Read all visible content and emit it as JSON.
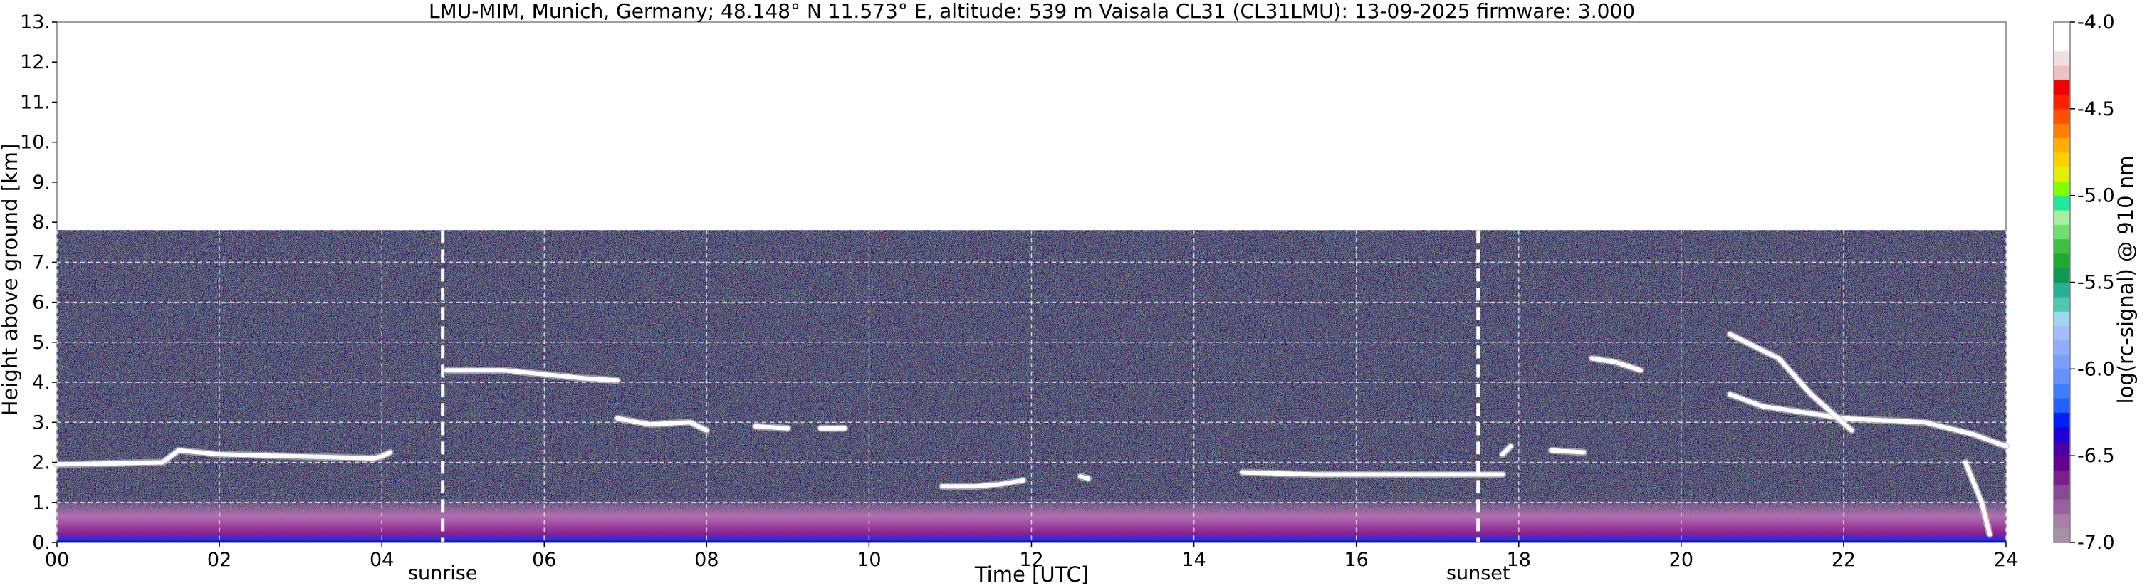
{
  "chart_data": {
    "type": "heatmap",
    "title": "LMU-MIM, Munich, Germany; 48.148° N 11.573° E, altitude: 539 m    Vaisala CL31 (CL31LMU): 13-09-2025    firmware: 3.000",
    "xlabel": "Time [UTC]",
    "ylabel": "Height above ground [km]",
    "xlim": [
      0,
      24
    ],
    "ylim": [
      0,
      13
    ],
    "x_ticks": [
      "00",
      "02",
      "04",
      "06",
      "08",
      "10",
      "12",
      "14",
      "16",
      "18",
      "20",
      "22",
      "24"
    ],
    "y_ticks": [
      "0.",
      "1.",
      "2.",
      "3.",
      "4.",
      "5.",
      "6.",
      "7.",
      "8.",
      "9.",
      "10.",
      "11.",
      "12.",
      "13."
    ],
    "grid": true,
    "data_top_km": 7.8,
    "markers": [
      {
        "label": "sunrise",
        "time_utc": 4.75
      },
      {
        "label": "sunset",
        "time_utc": 17.5
      }
    ],
    "colorbar": {
      "label": "log(rc-signal) @ 910 nm",
      "range": [
        -7.0,
        -4.0
      ],
      "ticks": [
        "-4.0",
        "-4.5",
        "-5.0",
        "-5.5",
        "-6.0",
        "-6.5",
        "-7.0"
      ],
      "colors": [
        "#a791a7",
        "#a77fa7",
        "#9a5f9f",
        "#8a4795",
        "#7a208a",
        "#68008e",
        "#4a00a8",
        "#1e00d8",
        "#0020f8",
        "#1e62ff",
        "#3f7dff",
        "#6392ff",
        "#7a9eff",
        "#90aeff",
        "#a6bcff",
        "#9fd6f0",
        "#50c8b0",
        "#25b098",
        "#109850",
        "#20a830",
        "#40c040",
        "#70e070",
        "#a8f0a0",
        "#20e8a0",
        "#80ff00",
        "#e0f000",
        "#ffd000",
        "#ffb000",
        "#ff8000",
        "#ff5000",
        "#ff2000",
        "#f00000",
        "#f0c0c0",
        "#f0e0e0",
        "#ffffff",
        "#ffffff"
      ]
    },
    "layers": [
      {
        "name": "cloud",
        "points": [
          [
            0,
            1.95
          ],
          [
            1.3,
            2.0
          ],
          [
            1.5,
            2.3
          ],
          [
            2.0,
            2.2
          ],
          [
            3.0,
            2.15
          ],
          [
            3.9,
            2.1
          ],
          [
            4.0,
            2.15
          ],
          [
            4.1,
            2.25
          ]
        ]
      },
      {
        "name": "cloud",
        "points": [
          [
            4.8,
            4.3
          ],
          [
            5.5,
            4.3
          ],
          [
            6.0,
            4.2
          ],
          [
            6.5,
            4.1
          ],
          [
            6.9,
            4.05
          ]
        ]
      },
      {
        "name": "cloud",
        "points": [
          [
            6.9,
            3.1
          ],
          [
            7.3,
            2.95
          ],
          [
            7.8,
            3.0
          ],
          [
            8.0,
            2.8
          ]
        ]
      },
      {
        "name": "cloud",
        "points": [
          [
            8.6,
            2.9
          ],
          [
            9.0,
            2.85
          ]
        ]
      },
      {
        "name": "cloud",
        "points": [
          [
            9.4,
            2.85
          ],
          [
            9.7,
            2.85
          ]
        ]
      },
      {
        "name": "cloud",
        "points": [
          [
            10.9,
            1.4
          ],
          [
            11.3,
            1.4
          ],
          [
            11.6,
            1.45
          ],
          [
            11.9,
            1.55
          ]
        ]
      },
      {
        "name": "cloud",
        "points": [
          [
            12.6,
            1.65
          ],
          [
            12.7,
            1.6
          ]
        ]
      },
      {
        "name": "cloud",
        "points": [
          [
            14.6,
            1.75
          ],
          [
            15.5,
            1.7
          ],
          [
            16.5,
            1.7
          ],
          [
            17.5,
            1.7
          ],
          [
            17.8,
            1.7
          ]
        ]
      },
      {
        "name": "cloud",
        "points": [
          [
            17.8,
            2.2
          ],
          [
            17.9,
            2.4
          ]
        ]
      },
      {
        "name": "cloud",
        "points": [
          [
            18.4,
            2.3
          ],
          [
            18.8,
            2.25
          ]
        ]
      },
      {
        "name": "cloud",
        "points": [
          [
            20.6,
            3.7
          ],
          [
            21.0,
            3.4
          ],
          [
            22.0,
            3.1
          ],
          [
            23.0,
            3.0
          ],
          [
            23.6,
            2.7
          ],
          [
            24.0,
            2.4
          ]
        ]
      },
      {
        "name": "cloud",
        "points": [
          [
            18.9,
            4.6
          ],
          [
            19.2,
            4.5
          ],
          [
            19.5,
            4.3
          ]
        ]
      },
      {
        "name": "cloud",
        "points": [
          [
            20.6,
            5.2
          ],
          [
            21.2,
            4.6
          ],
          [
            21.6,
            3.7
          ],
          [
            22.1,
            2.8
          ]
        ]
      },
      {
        "name": "cloud",
        "points": [
          [
            23.5,
            2.0
          ],
          [
            23.7,
            1.0
          ],
          [
            23.8,
            0.2
          ]
        ]
      }
    ]
  }
}
